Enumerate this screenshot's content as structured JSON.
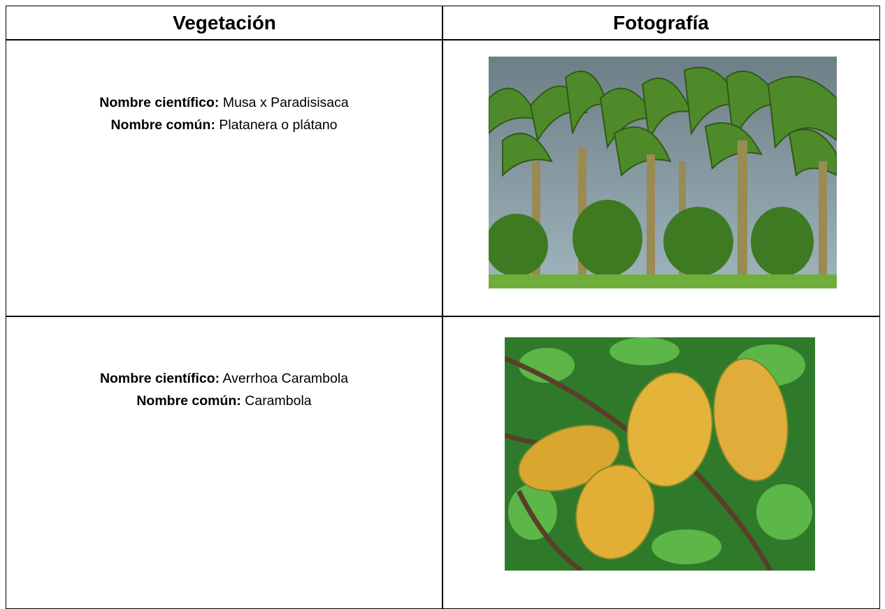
{
  "table": {
    "header": [
      "Vegetación",
      "Fotografía"
    ],
    "rows": [
      {
        "scientific_label": "Nombre científico:",
        "scientific_name": "Musa x Paradisisaca",
        "common_label": "Nombre común:",
        "common_name": "Platanera o plátano"
      },
      {
        "scientific_label": "Nombre científico:",
        "scientific_name": "Averrhoa Carambola",
        "common_label": "Nombre común:",
        "common_name": "Carambola"
      }
    ]
  }
}
